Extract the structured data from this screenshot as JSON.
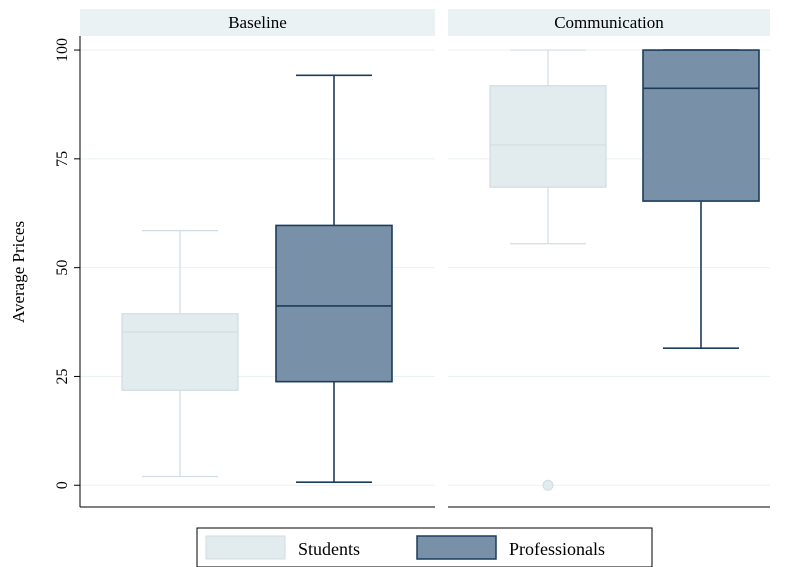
{
  "chart_data": {
    "type": "box",
    "ylabel": "Average Prices",
    "ylim": [
      -5,
      103
    ],
    "yticks": [
      0,
      25,
      50,
      75,
      100
    ],
    "grid": true,
    "legend_position": "bottom",
    "groups": [
      "Students",
      "Professionals"
    ],
    "group_colors": {
      "Students": "#e2ebee",
      "Professionals": "#7890a8"
    },
    "group_edge_colors": {
      "Students": "#d0dde2",
      "Professionals": "#1b3d5c"
    },
    "panels": [
      {
        "title": "Baseline",
        "boxes": [
          {
            "group": "Students",
            "min": 2,
            "q1": 21.8,
            "median": 35.2,
            "q3": 39.4,
            "max": 58.5,
            "outliers": []
          },
          {
            "group": "Professionals",
            "min": 0.7,
            "q1": 23.8,
            "median": 41.2,
            "q3": 59.7,
            "max": 94.2,
            "outliers": []
          }
        ]
      },
      {
        "title": "Communication",
        "boxes": [
          {
            "group": "Students",
            "min": 55.5,
            "q1": 68.5,
            "median": 78.2,
            "q3": 91.8,
            "max": 100,
            "outliers": [
              0
            ]
          },
          {
            "group": "Professionals",
            "min": 31.5,
            "q1": 65.3,
            "median": 91.2,
            "q3": 100,
            "max": 100,
            "outliers": []
          }
        ]
      }
    ]
  }
}
